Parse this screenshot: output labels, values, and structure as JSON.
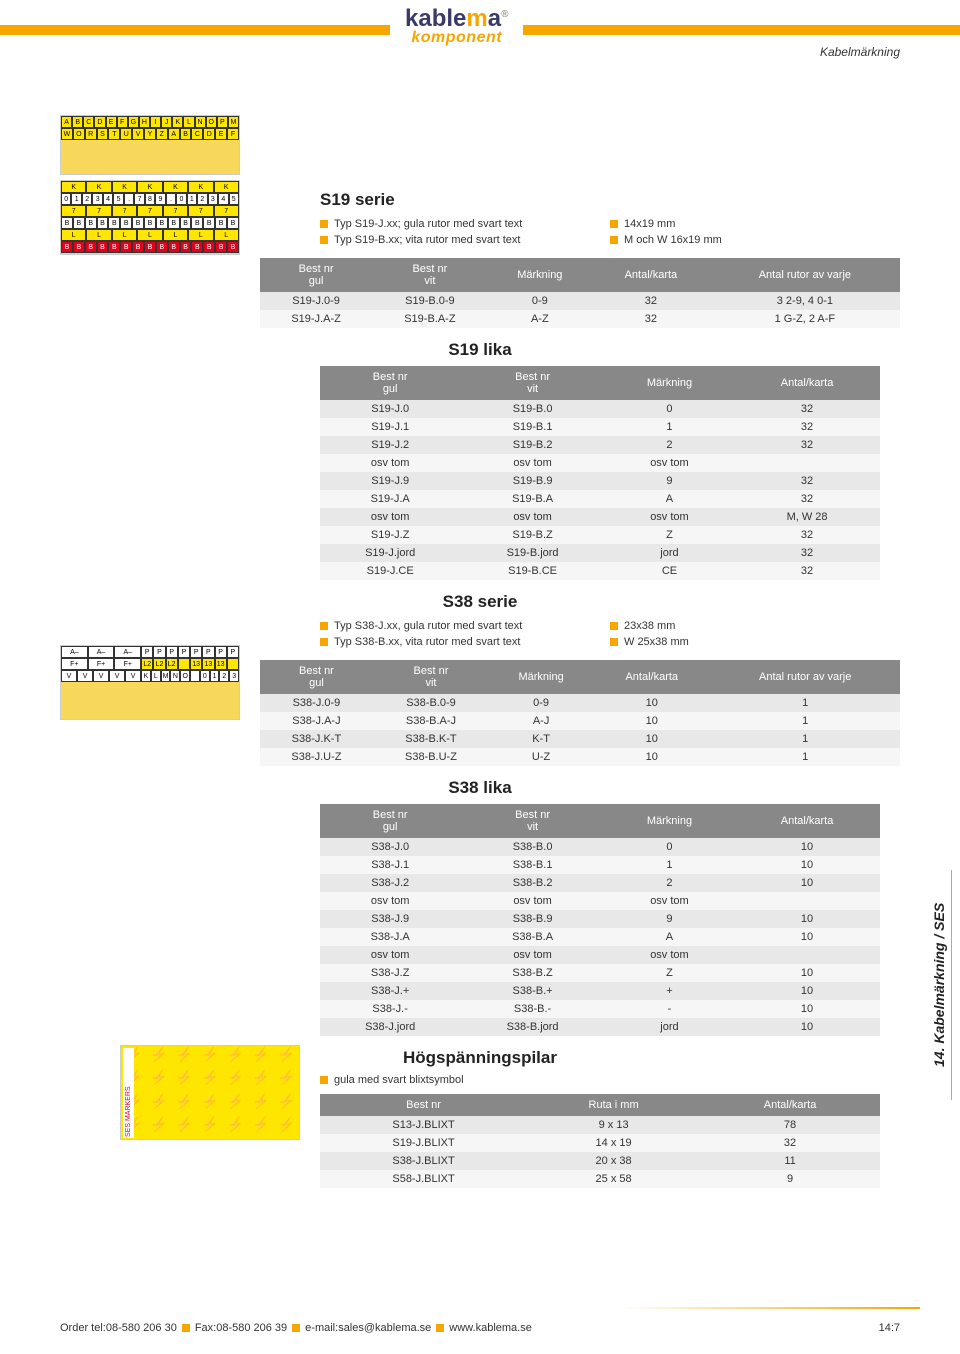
{
  "header": {
    "logo_main_pre": "kable",
    "logo_main_mid": "m",
    "logo_main_post": "a",
    "logo_reg": "®",
    "logo_sub": "komponent",
    "top_right": "Kabelmärkning"
  },
  "s19_serie": {
    "title": "S19 serie",
    "bullets": [
      {
        "left": "Typ S19-J.xx; gula rutor med svart text",
        "right": "14x19 mm"
      },
      {
        "left": "Typ S19-B.xx; vita rutor med svart text",
        "right": "M och W 16x19 mm"
      }
    ],
    "table": {
      "columns": [
        "Best nr\ngul",
        "Best nr\nvit",
        "Märkning",
        "Antal/karta",
        "Antal rutor av varje"
      ],
      "rows": [
        [
          "S19-J.0-9",
          "S19-B.0-9",
          "0-9",
          "32",
          "3 2-9, 4 0-1"
        ],
        [
          "S19-J.A-Z",
          "S19-B.A-Z",
          "A-Z",
          "32",
          "1 G-Z, 2 A-F"
        ]
      ]
    }
  },
  "s19_lika": {
    "title": "S19 lika",
    "columns": [
      "Best nr\ngul",
      "Best nr\nvit",
      "Märkning",
      "Antal/karta"
    ],
    "groups": [
      [
        [
          "S19-J.0",
          "S19-B.0",
          "0",
          "32"
        ],
        [
          "S19-J.1",
          "S19-B.1",
          "1",
          "32"
        ],
        [
          "S19-J.2",
          "S19-B.2",
          "2",
          "32"
        ],
        [
          "osv tom",
          "osv tom",
          "osv tom",
          ""
        ],
        [
          "S19-J.9",
          "S19-B.9",
          "9",
          "32"
        ]
      ],
      [
        [
          "S19-J.A",
          "S19-B.A",
          "A",
          "32"
        ],
        [
          "osv tom",
          "osv tom",
          "osv tom",
          "M, W 28"
        ],
        [
          "S19-J.Z",
          "S19-B.Z",
          "Z",
          "32"
        ]
      ],
      [
        [
          "S19-J.jord",
          "S19-B.jord",
          "jord",
          "32"
        ],
        [
          "S19-J.CE",
          "S19-B.CE",
          "CE",
          "32"
        ]
      ]
    ]
  },
  "s38_serie": {
    "title": "S38 serie",
    "bullets": [
      {
        "left": "Typ S38-J.xx, gula rutor med svart text",
        "right": "23x38 mm"
      },
      {
        "left": "Typ S38-B.xx, vita rutor med svart text",
        "right": "W 25x38 mm"
      }
    ],
    "table": {
      "columns": [
        "Best nr\ngul",
        "Best nr\nvit",
        "Märkning",
        "Antal/karta",
        "Antal rutor av varje"
      ],
      "rows": [
        [
          "S38-J.0-9",
          "S38-B.0-9",
          "0-9",
          "10",
          "1"
        ],
        [
          "S38-J.A-J",
          "S38-B.A-J",
          "A-J",
          "10",
          "1"
        ],
        [
          "S38-J.K-T",
          "S38-B.K-T",
          "K-T",
          "10",
          "1"
        ],
        [
          "S38-J.U-Z",
          "S38-B.U-Z",
          "U-Z",
          "10",
          "1"
        ]
      ]
    }
  },
  "s38_lika": {
    "title": "S38 lika",
    "columns": [
      "Best nr\ngul",
      "Best nr\nvit",
      "Märkning",
      "Antal/karta"
    ],
    "groups": [
      [
        [
          "S38-J.0",
          "S38-B.0",
          "0",
          "10"
        ],
        [
          "S38-J.1",
          "S38-B.1",
          "1",
          "10"
        ],
        [
          "S38-J.2",
          "S38-B.2",
          "2",
          "10"
        ],
        [
          "osv tom",
          "osv tom",
          "osv tom",
          ""
        ],
        [
          "S38-J.9",
          "S38-B.9",
          "9",
          "10"
        ]
      ],
      [
        [
          "S38-J.A",
          "S38-B.A",
          "A",
          "10"
        ],
        [
          "osv tom",
          "osv tom",
          "osv tom",
          ""
        ],
        [
          "S38-J.Z",
          "S38-B.Z",
          "Z",
          "10"
        ]
      ],
      [
        [
          "S38-J.+",
          "S38-B.+",
          "+",
          "10"
        ],
        [
          "S38-J.-",
          "S38-B.-",
          "-",
          "10"
        ],
        [
          "S38-J.jord",
          "S38-B.jord",
          "jord",
          "10"
        ]
      ]
    ]
  },
  "hogspanning": {
    "title": "Högspänningspilar",
    "bullet": "gula med svart blixtsymbol",
    "columns": [
      "Best nr",
      "Ruta i mm",
      "Antal/karta"
    ],
    "rows": [
      [
        "S13-J.BLIXT",
        "9 x 13",
        "78"
      ],
      [
        "S19-J.BLIXT",
        "14 x 19",
        "32"
      ],
      [
        "S38-J.BLIXT",
        "20 x 38",
        "11"
      ],
      [
        "S58-J.BLIXT",
        "25 x 58",
        "9"
      ]
    ]
  },
  "side_tab": "14. Kabelmärkning / SES",
  "footer": {
    "tel_label": "Order tel: ",
    "tel": "08-580 206 30",
    "fax_label": "Fax: ",
    "fax": "08-580 206 39",
    "email_label": "e-mail: ",
    "email": "sales@kablema.se",
    "web": "www.kablema.se",
    "pagenum": "14:7"
  },
  "thumbs": {
    "t1": [
      [
        "A",
        "B",
        "C",
        "D",
        "E",
        "F",
        "G",
        "H",
        "I",
        "J",
        "K",
        "L",
        "N",
        "O",
        "P",
        "M"
      ],
      [
        "W",
        "O",
        "R",
        "S",
        "T",
        "U",
        "V",
        "Y",
        "Z",
        "A",
        "B",
        "C",
        "D",
        "E",
        "F"
      ]
    ],
    "t2": [
      {
        "cls": "yellow",
        "cells": [
          "K",
          "K",
          "K",
          "K",
          "K",
          "K",
          "K"
        ]
      },
      {
        "cls": "white",
        "cells": [
          "0",
          "1",
          "2",
          "3",
          "4",
          "5",
          ".",
          "7",
          "8",
          "9",
          ".",
          "0",
          "1",
          "2",
          "3",
          "4",
          "5"
        ]
      },
      {
        "cls": "yellow",
        "cells": [
          "7",
          "7",
          "7",
          "7",
          "7",
          "7",
          "7"
        ]
      },
      {
        "cls": "white",
        "cells": [
          "B",
          "B",
          "B",
          "B",
          "B",
          "B",
          "B",
          "B",
          "B",
          "B",
          "B",
          "B",
          "B",
          "B",
          "B"
        ]
      },
      {
        "cls": "yellow",
        "cells": [
          "L",
          "L",
          "L",
          "L",
          "L",
          "L",
          "L"
        ]
      },
      {
        "cls": "red",
        "cells": [
          "B",
          "B",
          "B",
          "B",
          "B",
          "B",
          "B",
          "B",
          "B",
          "B",
          "B",
          "B",
          "B",
          "B",
          "B"
        ]
      }
    ],
    "t3": [
      {
        "left": [
          "A–",
          "A–",
          "A–"
        ],
        "right": [
          "P",
          "P",
          "P",
          "P",
          "P",
          "P",
          "P",
          "P"
        ],
        "rcls": "white"
      },
      {
        "left": [
          "F+",
          "F+",
          "F+"
        ],
        "right": [
          "L2",
          "L2",
          "L2",
          "",
          "13",
          "13",
          "13",
          ""
        ],
        "rcls": "yellow"
      },
      {
        "left": [
          "V",
          "V",
          "V",
          "V",
          "V"
        ],
        "right": [
          "K",
          "L",
          "M",
          "N",
          "O",
          "",
          "0",
          "1",
          "2",
          "3"
        ],
        "rcls": "white"
      }
    ]
  },
  "colors": {
    "accent": "#f7a600",
    "table_header": "#888888",
    "row_odd": "#e8e8e8",
    "row_even": "#f6f6f6"
  }
}
